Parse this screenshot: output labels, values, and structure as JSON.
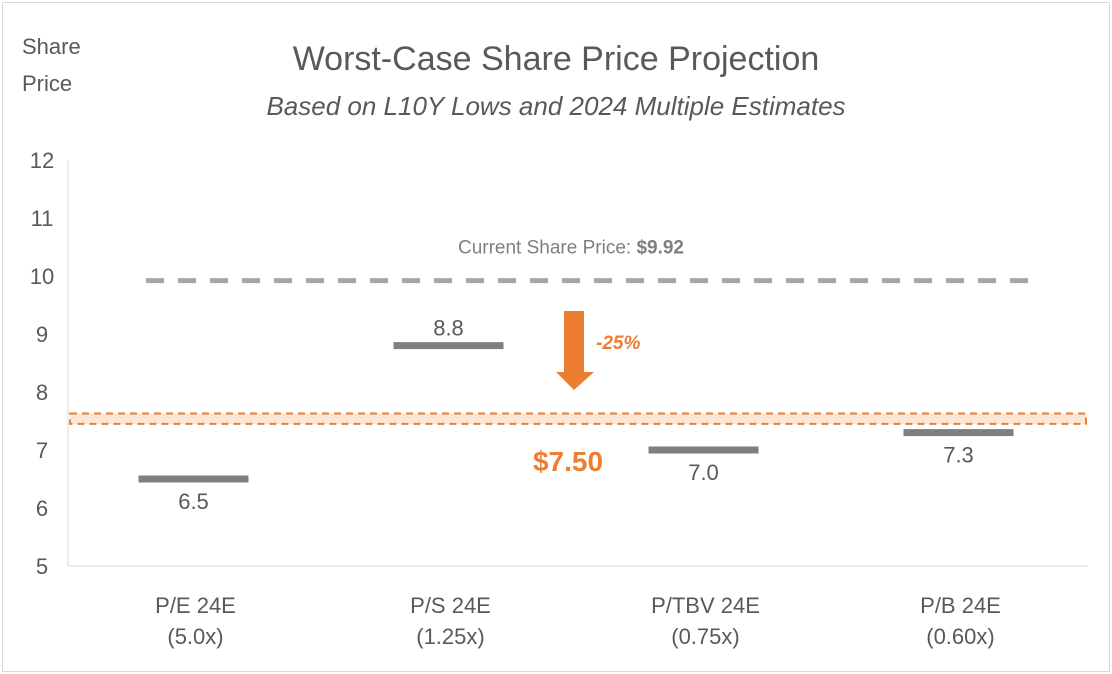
{
  "chart_data": {
    "type": "range-markers",
    "title": "Worst-Case Share Price Projection",
    "subtitle": "Based on L10Y Lows and 2024 Multiple Estimates",
    "ylabel": "Share Price",
    "ylim": [
      5,
      12
    ],
    "yticks": [
      "5",
      "6",
      "7",
      "8",
      "9",
      "10",
      "11",
      "12"
    ],
    "grid": false,
    "categories": [
      {
        "line1": "P/E 24E",
        "line2": "(5.0x)"
      },
      {
        "line1": "P/S 24E",
        "line2": "(1.25x)"
      },
      {
        "line1": "P/TBV 24E",
        "line2": "(0.75x)"
      },
      {
        "line1": "P/B 24E",
        "line2": "(0.60x)"
      }
    ],
    "values": [
      6.5,
      8.8,
      7.0,
      7.3
    ],
    "value_labels": [
      "6.5",
      "8.8",
      "7.0",
      "7.3"
    ],
    "current_price": {
      "value": 9.92,
      "label": "Current Share Price: ",
      "label_value": "$9.92"
    },
    "target": {
      "value": 7.5,
      "band": [
        7.45,
        7.63
      ],
      "label": "$7.50"
    },
    "change_label": "-25%",
    "colors": {
      "marker": "#7f7f7f",
      "current": "#a6a6a6",
      "accent": "#ed7d31",
      "band_fill": "#fbe5d6",
      "text": "#595959"
    }
  }
}
